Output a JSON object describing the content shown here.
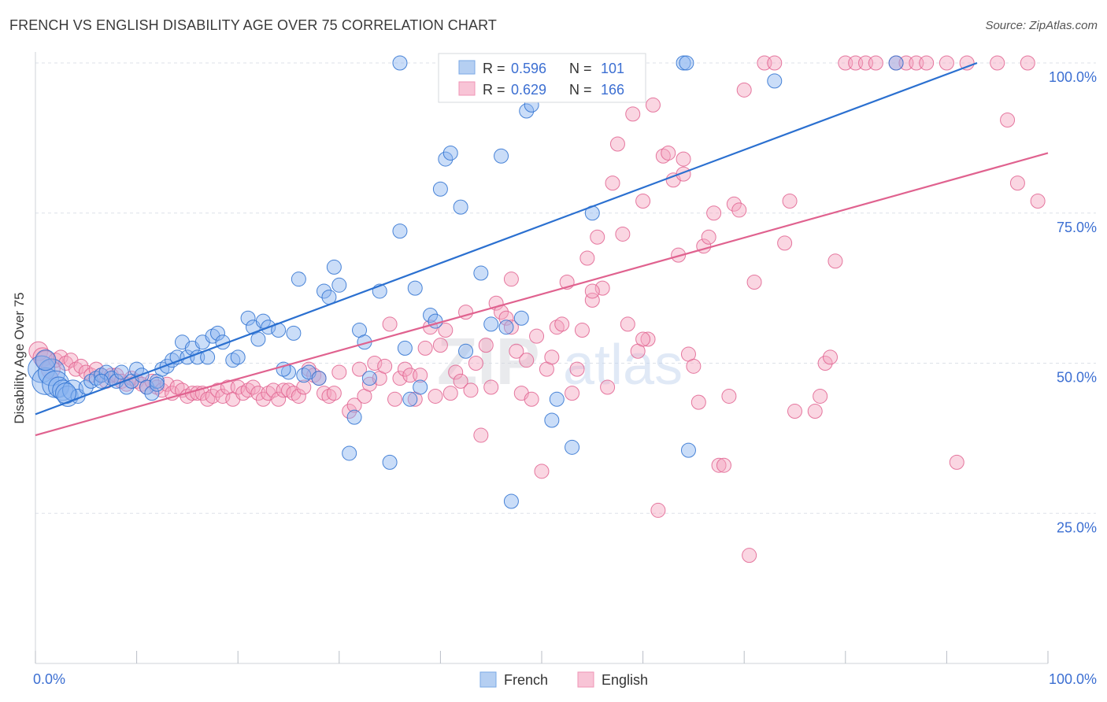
{
  "header": {
    "title": "FRENCH VS ENGLISH DISABILITY AGE OVER 75 CORRELATION CHART",
    "source": "Source: ZipAtlas.com"
  },
  "colors": {
    "french": "#8ab4f0",
    "french_line": "#2b70d0",
    "english": "#f5a3bf",
    "english_line": "#e0628f",
    "value_text": "#3c6fd2",
    "grid": "#dde1e8"
  },
  "legend_stats": {
    "french": {
      "r_label": "R = ",
      "r_value": "0.596",
      "n_label": "N = ",
      "n_value": "101"
    },
    "english": {
      "r_label": "R = ",
      "r_value": "0.629",
      "n_label": "N = ",
      "n_value": "166"
    }
  },
  "watermark": {
    "part1": "ZIP",
    "part2": "atlas"
  },
  "chart_data": {
    "type": "scatter",
    "title": "FRENCH VS ENGLISH DISABILITY AGE OVER 75 CORRELATION CHART",
    "xlabel": "",
    "ylabel": "Disability Age Over 75",
    "xlim": [
      0,
      100
    ],
    "ylim": [
      0,
      100
    ],
    "x_tick_labels": [
      "0.0%",
      "100.0%"
    ],
    "y_tick_labels": [
      "25.0%",
      "50.0%",
      "75.0%",
      "100.0%"
    ],
    "y_ticks": [
      25,
      50,
      75,
      100
    ],
    "grid": true,
    "legend_position": "bottom",
    "series": [
      {
        "name": "French",
        "r": 0.596,
        "n": 101,
        "trend": {
          "x": [
            0,
            93
          ],
          "y": [
            41.5,
            100
          ]
        },
        "points": [
          [
            0.6,
            49
          ],
          [
            1,
            47
          ],
          [
            1.6,
            48.5
          ],
          [
            2,
            46.5
          ],
          [
            2.3,
            46
          ],
          [
            2.7,
            45.5
          ],
          [
            3.2,
            44.5
          ],
          [
            3.7,
            45.5
          ],
          [
            4.2,
            44.5
          ],
          [
            5,
            46
          ],
          [
            5.5,
            47
          ],
          [
            6,
            47.5
          ],
          [
            6.5,
            48
          ],
          [
            7,
            48.5
          ],
          [
            7.5,
            47.5
          ],
          [
            8,
            47
          ],
          [
            8.5,
            48.5
          ],
          [
            9,
            46
          ],
          [
            9.5,
            47
          ],
          [
            10,
            49
          ],
          [
            10.5,
            48
          ],
          [
            11,
            46
          ],
          [
            11.5,
            45
          ],
          [
            12,
            47
          ],
          [
            12.5,
            49
          ],
          [
            13,
            49.5
          ],
          [
            13.5,
            50.5
          ],
          [
            14,
            51
          ],
          [
            14.5,
            53.5
          ],
          [
            15,
            51
          ],
          [
            15.5,
            52.5
          ],
          [
            16,
            51
          ],
          [
            16.5,
            53.5
          ],
          [
            17,
            51
          ],
          [
            17.5,
            54.5
          ],
          [
            18,
            55
          ],
          [
            18.5,
            53.5
          ],
          [
            19.5,
            50.5
          ],
          [
            20,
            51
          ],
          [
            21,
            57.5
          ],
          [
            21.5,
            56
          ],
          [
            22,
            54
          ],
          [
            22.5,
            57
          ],
          [
            23,
            56
          ],
          [
            24,
            55.5
          ],
          [
            25,
            48.5
          ],
          [
            25.5,
            55
          ],
          [
            26,
            64
          ],
          [
            26.5,
            48
          ],
          [
            27,
            48.5
          ],
          [
            28,
            47.5
          ],
          [
            28.5,
            62
          ],
          [
            29,
            61
          ],
          [
            29.5,
            66
          ],
          [
            30,
            63
          ],
          [
            31,
            35
          ],
          [
            31.5,
            41
          ],
          [
            32,
            55.5
          ],
          [
            32.5,
            53.5
          ],
          [
            33,
            47.5
          ],
          [
            34,
            62
          ],
          [
            35,
            33.5
          ],
          [
            36,
            72
          ],
          [
            36.5,
            52.5
          ],
          [
            37,
            44
          ],
          [
            37.5,
            62.5
          ],
          [
            38,
            46
          ],
          [
            39,
            58
          ],
          [
            39.5,
            57
          ],
          [
            40,
            79
          ],
          [
            40.5,
            84
          ],
          [
            41,
            85
          ],
          [
            42,
            76
          ],
          [
            42.5,
            52
          ],
          [
            44,
            65
          ],
          [
            45,
            56.5
          ],
          [
            46,
            84.5
          ],
          [
            46.5,
            56
          ],
          [
            47,
            27
          ],
          [
            48,
            57.5
          ],
          [
            48.5,
            92
          ],
          [
            49,
            93
          ],
          [
            50,
            100
          ],
          [
            51,
            40.5
          ],
          [
            51.5,
            44
          ],
          [
            53,
            36
          ],
          [
            54,
            100
          ],
          [
            55,
            75
          ],
          [
            64,
            100
          ],
          [
            64.3,
            100
          ],
          [
            64.5,
            35.5
          ],
          [
            73,
            97
          ],
          [
            85,
            100
          ],
          [
            36,
            100
          ],
          [
            42,
            100
          ],
          [
            1,
            50.5
          ],
          [
            3,
            45
          ],
          [
            6.5,
            47
          ],
          [
            12,
            46.5
          ],
          [
            24.5,
            49
          ]
        ]
      },
      {
        "name": "English",
        "r": 0.629,
        "n": 166,
        "trend": {
          "x": [
            0,
            100
          ],
          "y": [
            38,
            85
          ]
        },
        "points": [
          [
            0.3,
            52
          ],
          [
            0.7,
            51
          ],
          [
            1,
            50.5
          ],
          [
            1.5,
            49
          ],
          [
            2,
            50.5
          ],
          [
            2.5,
            51
          ],
          [
            3,
            50
          ],
          [
            3.5,
            50.5
          ],
          [
            4,
            49
          ],
          [
            4.5,
            49.5
          ],
          [
            5,
            48.5
          ],
          [
            5.5,
            48
          ],
          [
            6,
            49
          ],
          [
            6.5,
            48
          ],
          [
            7,
            47
          ],
          [
            7.5,
            48
          ],
          [
            8,
            48
          ],
          [
            8.5,
            47
          ],
          [
            9,
            46.5
          ],
          [
            9.5,
            47.5
          ],
          [
            10,
            47
          ],
          [
            10.5,
            46.5
          ],
          [
            11,
            46
          ],
          [
            11.5,
            47
          ],
          [
            12,
            46
          ],
          [
            12.5,
            45.5
          ],
          [
            13,
            46.5
          ],
          [
            13.5,
            45
          ],
          [
            14,
            46
          ],
          [
            14.5,
            45.5
          ],
          [
            15,
            44.5
          ],
          [
            15.5,
            45
          ],
          [
            16,
            45
          ],
          [
            16.5,
            45
          ],
          [
            17,
            44
          ],
          [
            17.5,
            44.5
          ],
          [
            18,
            45.5
          ],
          [
            18.5,
            44.5
          ],
          [
            19,
            46
          ],
          [
            19.5,
            44
          ],
          [
            20,
            46
          ],
          [
            20.5,
            45
          ],
          [
            21,
            45.5
          ],
          [
            21.5,
            46
          ],
          [
            22,
            45
          ],
          [
            22.5,
            44
          ],
          [
            23,
            45
          ],
          [
            23.5,
            45.5
          ],
          [
            24,
            44
          ],
          [
            24.5,
            45.5
          ],
          [
            25,
            45.5
          ],
          [
            25.5,
            45
          ],
          [
            26,
            44.5
          ],
          [
            26.5,
            46
          ],
          [
            27,
            49
          ],
          [
            27.5,
            48
          ],
          [
            28,
            47.5
          ],
          [
            28.5,
            45
          ],
          [
            29,
            44.5
          ],
          [
            29.5,
            45
          ],
          [
            30,
            48.5
          ],
          [
            31,
            42
          ],
          [
            31.5,
            43
          ],
          [
            32,
            49
          ],
          [
            32.5,
            44.5
          ],
          [
            33,
            46.5
          ],
          [
            33.5,
            50
          ],
          [
            34,
            47.5
          ],
          [
            34.5,
            49.5
          ],
          [
            35,
            56.5
          ],
          [
            35.5,
            44
          ],
          [
            36,
            47.5
          ],
          [
            36.5,
            49
          ],
          [
            37,
            48
          ],
          [
            37.5,
            44
          ],
          [
            38,
            48
          ],
          [
            38.5,
            52.5
          ],
          [
            39,
            56
          ],
          [
            39.5,
            44.5
          ],
          [
            40,
            53
          ],
          [
            40.5,
            55.5
          ],
          [
            41,
            45
          ],
          [
            41.5,
            48.5
          ],
          [
            42,
            47
          ],
          [
            42.5,
            58.5
          ],
          [
            43,
            45.5
          ],
          [
            43.5,
            50
          ],
          [
            44,
            38
          ],
          [
            44.5,
            53
          ],
          [
            45,
            46
          ],
          [
            45.5,
            60
          ],
          [
            46,
            58.5
          ],
          [
            46.5,
            57.5
          ],
          [
            47,
            56
          ],
          [
            47.5,
            52
          ],
          [
            48,
            45
          ],
          [
            48.5,
            50.5
          ],
          [
            49,
            44
          ],
          [
            49.5,
            54.5
          ],
          [
            50,
            32
          ],
          [
            50.5,
            49
          ],
          [
            51,
            51
          ],
          [
            51.5,
            56
          ],
          [
            52,
            56.5
          ],
          [
            52.5,
            63.5
          ],
          [
            53,
            45
          ],
          [
            53.5,
            49
          ],
          [
            54,
            55.5
          ],
          [
            54.5,
            67.5
          ],
          [
            55,
            60.5
          ],
          [
            55.5,
            71
          ],
          [
            56,
            62.5
          ],
          [
            56.5,
            46
          ],
          [
            57,
            80
          ],
          [
            57.5,
            86.5
          ],
          [
            58,
            71.5
          ],
          [
            58.5,
            56.5
          ],
          [
            59,
            91.5
          ],
          [
            59.5,
            52
          ],
          [
            60,
            77
          ],
          [
            60.5,
            54
          ],
          [
            61,
            93
          ],
          [
            61.5,
            25.5
          ],
          [
            62,
            84.5
          ],
          [
            62.5,
            85
          ],
          [
            63,
            80.5
          ],
          [
            63.5,
            68
          ],
          [
            64,
            81.5
          ],
          [
            64.5,
            51.5
          ],
          [
            65,
            49.5
          ],
          [
            65.5,
            43.5
          ],
          [
            66,
            69.5
          ],
          [
            66.5,
            71
          ],
          [
            67,
            75
          ],
          [
            67.5,
            33
          ],
          [
            68,
            33
          ],
          [
            68.5,
            44.5
          ],
          [
            69,
            76.5
          ],
          [
            69.5,
            75.5
          ],
          [
            70,
            95.5
          ],
          [
            70.5,
            18
          ],
          [
            71,
            63.5
          ],
          [
            72,
            100
          ],
          [
            73,
            100
          ],
          [
            74,
            70
          ],
          [
            74.5,
            77
          ],
          [
            75,
            42
          ],
          [
            77,
            42
          ],
          [
            77.5,
            44.5
          ],
          [
            78,
            50
          ],
          [
            78.5,
            51
          ],
          [
            79,
            67
          ],
          [
            80,
            100
          ],
          [
            81,
            100
          ],
          [
            82,
            100
          ],
          [
            83,
            100
          ],
          [
            85,
            100
          ],
          [
            86,
            100
          ],
          [
            87,
            100
          ],
          [
            88,
            100
          ],
          [
            90,
            100
          ],
          [
            91,
            33.5
          ],
          [
            92,
            100
          ],
          [
            95,
            100
          ],
          [
            96,
            90.5
          ],
          [
            97,
            80
          ],
          [
            98,
            100
          ],
          [
            99,
            77
          ],
          [
            55,
            62
          ],
          [
            60,
            54
          ],
          [
            64,
            84
          ],
          [
            47,
            64
          ]
        ]
      }
    ]
  }
}
